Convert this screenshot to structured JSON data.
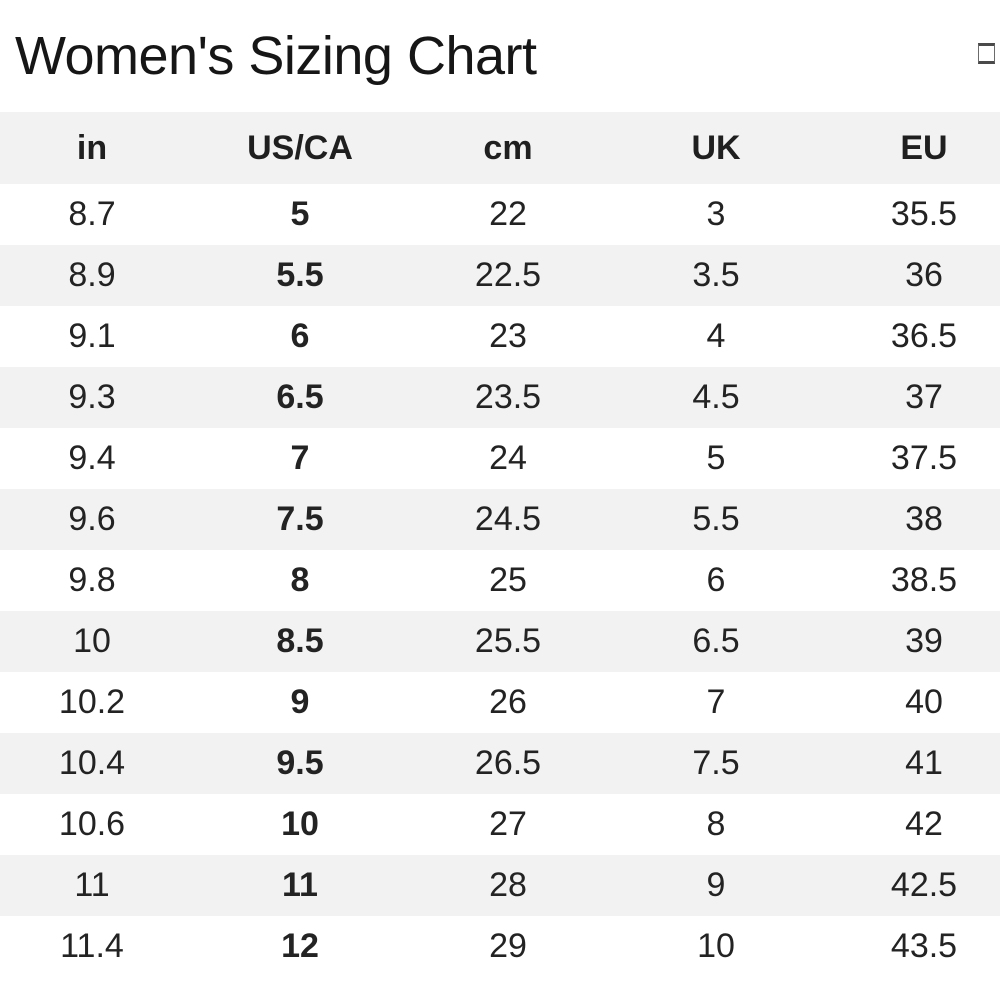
{
  "page": {
    "title": "Women's Sizing Chart"
  },
  "icons": {
    "top_right": "image-placeholder-icon"
  },
  "colors": {
    "header_bg": "#f2f2f2",
    "row_alt_bg": "#f2f2f2",
    "row_bg": "#ffffff",
    "text": "#222222"
  },
  "table": {
    "columns": [
      "in",
      "US/CA",
      "cm",
      "UK",
      "EU"
    ],
    "bold_column": "US/CA",
    "rows": [
      [
        "8.7",
        "5",
        "22",
        "3",
        "35.5"
      ],
      [
        "8.9",
        "5.5",
        "22.5",
        "3.5",
        "36"
      ],
      [
        "9.1",
        "6",
        "23",
        "4",
        "36.5"
      ],
      [
        "9.3",
        "6.5",
        "23.5",
        "4.5",
        "37"
      ],
      [
        "9.4",
        "7",
        "24",
        "5",
        "37.5"
      ],
      [
        "9.6",
        "7.5",
        "24.5",
        "5.5",
        "38"
      ],
      [
        "9.8",
        "8",
        "25",
        "6",
        "38.5"
      ],
      [
        "10",
        "8.5",
        "25.5",
        "6.5",
        "39"
      ],
      [
        "10.2",
        "9",
        "26",
        "7",
        "40"
      ],
      [
        "10.4",
        "9.5",
        "26.5",
        "7.5",
        "41"
      ],
      [
        "10.6",
        "10",
        "27",
        "8",
        "42"
      ],
      [
        "11",
        "11",
        "28",
        "9",
        "42.5"
      ],
      [
        "11.4",
        "12",
        "29",
        "10",
        "43.5"
      ]
    ]
  }
}
